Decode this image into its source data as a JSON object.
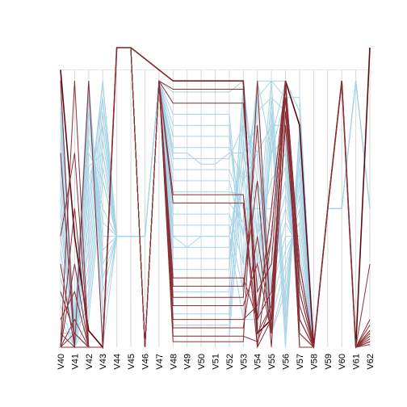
{
  "chart_data": {
    "type": "parallel-coordinates",
    "title": "",
    "xlabel": "",
    "ylabel": "",
    "axes": [
      "V40",
      "V41",
      "V42",
      "V43",
      "V44",
      "V45",
      "V46",
      "V47",
      "V48",
      "V49",
      "V50",
      "V51",
      "V52",
      "V53",
      "V54",
      "V55",
      "V56",
      "V57",
      "V58",
      "V59",
      "V60",
      "V61",
      "V62"
    ],
    "ylim": [
      0,
      1.08
    ],
    "grid": true,
    "legend": "none",
    "colors": {
      "class_a": "#a6d3e7",
      "class_b": "#8b3036",
      "highlight": "#5e0a14",
      "axis": "#d9d9d9"
    },
    "series": [
      {
        "group": "b",
        "values": [
          1.0,
          0.4,
          0.06,
          0.0,
          1.08,
          1.08,
          1.04,
          1.0,
          0.96,
          0.96,
          0.96,
          0.96,
          0.96,
          0.96,
          0.05,
          0.1,
          0.96,
          0.8,
          0.0,
          0.5,
          0.96,
          0.0,
          1.08
        ]
      },
      {
        "group": "b",
        "values": [
          0.0,
          0.96,
          0.0,
          0.0,
          1.08,
          1.08,
          1.04,
          1.0,
          0.96,
          0.96,
          0.96,
          0.96,
          0.96,
          0.96,
          0.0,
          0.4,
          0.96,
          0.3,
          0.0,
          0.5,
          0.96,
          0.0,
          0.3
        ]
      },
      {
        "group": "b",
        "values": [
          0.96,
          0.0,
          0.96,
          0.0,
          1.08,
          1.08,
          0.0,
          0.96,
          0.93,
          0.93,
          0.93,
          0.93,
          0.93,
          0.93,
          0.1,
          0.5,
          0.96,
          0.2,
          0.0,
          0.5,
          0.96,
          0.0,
          0.1
        ]
      },
      {
        "group": "b",
        "values": [
          0.4,
          0.7,
          0.0,
          0.0,
          1.08,
          1.08,
          0.0,
          0.96,
          0.88,
          0.88,
          0.88,
          0.88,
          0.88,
          0.88,
          0.2,
          0.3,
          0.96,
          0.1,
          0.0,
          0.5,
          0.96,
          0.0,
          0.05
        ]
      },
      {
        "group": "b",
        "values": [
          0.1,
          0.2,
          0.0,
          0.0,
          1.08,
          1.08,
          0.0,
          0.96,
          0.55,
          0.55,
          0.55,
          0.55,
          0.55,
          0.55,
          0.05,
          0.15,
          0.96,
          0.05,
          0.0,
          0.5,
          0.96,
          0.0,
          0.02
        ]
      },
      {
        "group": "b",
        "values": [
          0.0,
          0.5,
          0.0,
          0.0,
          1.08,
          1.08,
          0.0,
          0.96,
          0.52,
          0.52,
          0.52,
          0.52,
          0.52,
          0.52,
          0.0,
          0.1,
          0.96,
          0.0,
          0.0,
          0.5,
          0.96,
          0.0,
          0.08
        ]
      },
      {
        "group": "b",
        "values": [
          0.05,
          0.0,
          0.0,
          0.0,
          1.08,
          1.08,
          0.0,
          0.96,
          0.25,
          0.25,
          0.25,
          0.25,
          0.25,
          0.25,
          0.1,
          0.2,
          0.9,
          0.1,
          0.0,
          0.5,
          0.96,
          0.0,
          0.03
        ]
      },
      {
        "group": "b",
        "values": [
          0.2,
          0.05,
          0.0,
          0.0,
          1.08,
          1.08,
          0.0,
          0.96,
          0.22,
          0.22,
          0.22,
          0.22,
          0.22,
          0.22,
          0.6,
          0.0,
          0.85,
          0.2,
          0.0,
          0.5,
          0.96,
          0.0,
          0.06
        ]
      },
      {
        "group": "b",
        "values": [
          0.0,
          0.1,
          0.0,
          0.0,
          1.08,
          1.08,
          0.0,
          0.96,
          0.18,
          0.18,
          0.18,
          0.18,
          0.18,
          0.18,
          0.8,
          0.05,
          0.8,
          0.15,
          0.0,
          0.5,
          0.96,
          0.0,
          0.01
        ]
      },
      {
        "group": "b",
        "values": [
          0.3,
          0.0,
          0.0,
          0.0,
          1.08,
          1.08,
          0.0,
          0.96,
          0.15,
          0.15,
          0.15,
          0.15,
          0.15,
          0.15,
          0.3,
          0.05,
          0.96,
          0.3,
          0.0,
          0.5,
          0.96,
          0.0,
          0.04
        ]
      },
      {
        "group": "b",
        "values": [
          0.0,
          0.3,
          0.0,
          0.0,
          1.08,
          1.08,
          0.0,
          0.96,
          0.1,
          0.1,
          0.1,
          0.1,
          0.1,
          0.1,
          0.15,
          0.4,
          0.96,
          0.25,
          0.0,
          0.5,
          0.96,
          0.0,
          0.02
        ]
      },
      {
        "group": "b",
        "values": [
          0.0,
          0.05,
          0.0,
          0.0,
          1.08,
          1.08,
          0.0,
          0.96,
          0.07,
          0.07,
          0.07,
          0.07,
          0.07,
          0.07,
          0.4,
          0.05,
          0.96,
          0.1,
          0.0,
          0.5,
          0.96,
          0.0,
          0.05
        ]
      },
      {
        "group": "b",
        "values": [
          0.7,
          0.0,
          0.0,
          0.0,
          1.08,
          1.08,
          0.0,
          0.96,
          0.04,
          0.04,
          0.04,
          0.04,
          0.04,
          0.04,
          0.02,
          0.15,
          0.96,
          0.05,
          0.0,
          0.5,
          0.96,
          0.0,
          0.02
        ]
      },
      {
        "group": "b",
        "values": [
          0.0,
          0.0,
          0.0,
          0.0,
          1.08,
          1.08,
          0.0,
          0.96,
          0.02,
          0.02,
          0.02,
          0.02,
          0.02,
          0.02,
          0.96,
          0.05,
          0.96,
          0.0,
          0.0,
          0.5,
          0.96,
          0.0,
          0.06
        ]
      },
      {
        "group": "a",
        "values": [
          0.96,
          0.05,
          0.96,
          0.0,
          0.4,
          0.4,
          0.4,
          0.96,
          0.84,
          0.84,
          0.84,
          0.84,
          0.84,
          0.3,
          0.9,
          0.96,
          0.96,
          0.2,
          0.0,
          0.5,
          0.5,
          0.96,
          0.5
        ]
      },
      {
        "group": "a",
        "values": [
          0.9,
          0.0,
          0.96,
          0.1,
          0.4,
          0.4,
          0.4,
          0.96,
          0.8,
          0.8,
          0.8,
          0.8,
          0.8,
          0.2,
          0.96,
          0.96,
          0.9,
          0.15,
          0.0,
          0.5,
          0.5,
          0.96,
          0.5
        ]
      },
      {
        "group": "a",
        "values": [
          0.8,
          0.1,
          0.96,
          0.2,
          0.4,
          0.4,
          0.4,
          0.96,
          0.76,
          0.76,
          0.76,
          0.76,
          0.76,
          0.4,
          0.85,
          0.9,
          0.85,
          0.1,
          0.0,
          0.5,
          0.5,
          0.96,
          0.5
        ]
      },
      {
        "group": "a",
        "values": [
          0.7,
          0.0,
          0.96,
          0.25,
          0.4,
          0.4,
          0.4,
          0.96,
          0.72,
          0.72,
          0.72,
          0.72,
          0.72,
          0.6,
          0.7,
          0.8,
          0.8,
          0.05,
          0.0,
          0.5,
          0.5,
          0.96,
          0.5
        ]
      },
      {
        "group": "a",
        "values": [
          0.6,
          0.05,
          0.96,
          0.3,
          0.4,
          0.4,
          0.4,
          0.96,
          0.68,
          0.68,
          0.68,
          0.68,
          0.68,
          0.8,
          0.3,
          0.7,
          0.75,
          0.05,
          0.0,
          0.5,
          0.5,
          0.96,
          0.5
        ]
      },
      {
        "group": "a",
        "values": [
          0.5,
          0.0,
          0.9,
          0.35,
          0.4,
          0.4,
          0.4,
          0.96,
          0.7,
          0.7,
          0.66,
          0.66,
          0.7,
          0.7,
          0.4,
          0.6,
          0.7,
          0.1,
          0.0,
          0.5,
          0.5,
          0.96,
          0.5
        ]
      },
      {
        "group": "a",
        "values": [
          0.4,
          0.05,
          0.85,
          0.4,
          0.4,
          0.4,
          0.4,
          0.96,
          0.64,
          0.64,
          0.64,
          0.64,
          0.64,
          0.5,
          0.5,
          0.5,
          0.65,
          0.15,
          0.0,
          0.5,
          0.5,
          0.96,
          0.5
        ]
      },
      {
        "group": "a",
        "values": [
          0.3,
          0.0,
          0.8,
          0.45,
          0.4,
          0.4,
          0.4,
          0.96,
          0.6,
          0.6,
          0.6,
          0.6,
          0.6,
          0.4,
          0.6,
          0.4,
          0.6,
          0.2,
          0.0,
          0.5,
          0.5,
          0.96,
          0.5
        ]
      },
      {
        "group": "a",
        "values": [
          0.2,
          0.05,
          0.75,
          0.5,
          0.4,
          0.4,
          0.4,
          0.96,
          0.48,
          0.48,
          0.48,
          0.48,
          0.48,
          0.3,
          0.3,
          0.35,
          0.55,
          0.25,
          0.0,
          0.5,
          0.5,
          0.96,
          0.5
        ]
      },
      {
        "group": "a",
        "values": [
          0.1,
          0.0,
          0.7,
          0.6,
          0.4,
          0.4,
          0.4,
          0.96,
          0.44,
          0.44,
          0.44,
          0.44,
          0.44,
          0.2,
          0.2,
          0.3,
          0.5,
          0.3,
          0.0,
          0.5,
          0.5,
          0.96,
          0.5
        ]
      },
      {
        "group": "a",
        "values": [
          0.05,
          0.05,
          0.65,
          0.7,
          0.4,
          0.4,
          0.4,
          0.96,
          0.4,
          0.4,
          0.4,
          0.4,
          0.4,
          0.1,
          0.1,
          0.25,
          0.45,
          0.35,
          0.0,
          0.5,
          0.5,
          0.96,
          0.5
        ]
      },
      {
        "group": "a",
        "values": [
          0.96,
          0.0,
          0.6,
          0.8,
          0.4,
          0.4,
          0.4,
          0.96,
          0.36,
          0.36,
          0.36,
          0.36,
          0.36,
          0.6,
          0.9,
          0.2,
          0.4,
          0.4,
          0.0,
          0.5,
          0.5,
          0.96,
          0.5
        ]
      },
      {
        "group": "a",
        "values": [
          0.85,
          0.05,
          0.55,
          0.9,
          0.4,
          0.4,
          0.4,
          0.96,
          0.4,
          0.36,
          0.4,
          0.4,
          0.4,
          0.7,
          0.8,
          0.15,
          0.35,
          0.45,
          0.0,
          0.5,
          0.5,
          0.96,
          0.5
        ]
      },
      {
        "group": "a",
        "values": [
          0.75,
          0.0,
          0.5,
          0.96,
          0.4,
          0.4,
          0.4,
          0.96,
          0.32,
          0.32,
          0.32,
          0.32,
          0.32,
          0.8,
          0.7,
          0.1,
          0.3,
          0.5,
          0.0,
          0.5,
          0.5,
          0.96,
          0.5
        ]
      },
      {
        "group": "a",
        "values": [
          0.65,
          0.05,
          0.45,
          0.96,
          0.4,
          0.4,
          0.4,
          0.96,
          0.28,
          0.28,
          0.28,
          0.28,
          0.28,
          0.9,
          0.6,
          0.05,
          0.25,
          0.55,
          0.0,
          0.5,
          0.5,
          0.96,
          0.5
        ]
      },
      {
        "group": "a",
        "values": [
          0.55,
          0.0,
          0.4,
          0.9,
          0.4,
          0.4,
          0.4,
          0.96,
          0.2,
          0.2,
          0.2,
          0.2,
          0.2,
          0.96,
          0.5,
          0.05,
          0.2,
          0.6,
          0.0,
          0.5,
          0.5,
          0.96,
          0.5
        ]
      },
      {
        "group": "a",
        "values": [
          0.45,
          0.05,
          0.35,
          0.85,
          0.4,
          0.4,
          0.4,
          0.96,
          0.92,
          0.92,
          0.92,
          0.92,
          0.92,
          0.96,
          0.4,
          0.96,
          0.15,
          0.65,
          0.0,
          0.5,
          0.5,
          0.96,
          0.5
        ]
      },
      {
        "group": "a",
        "values": [
          0.35,
          0.0,
          0.3,
          0.8,
          0.4,
          0.4,
          0.4,
          0.96,
          0.12,
          0.12,
          0.12,
          0.12,
          0.12,
          0.85,
          0.3,
          0.9,
          0.1,
          0.7,
          0.0,
          0.5,
          0.5,
          0.96,
          0.5
        ]
      },
      {
        "group": "a",
        "values": [
          0.25,
          0.05,
          0.25,
          0.75,
          0.4,
          0.4,
          0.4,
          0.96,
          0.08,
          0.08,
          0.08,
          0.08,
          0.08,
          0.75,
          0.2,
          0.85,
          0.05,
          0.75,
          0.0,
          0.5,
          0.5,
          0.96,
          0.5
        ]
      },
      {
        "group": "a",
        "values": [
          0.15,
          0.0,
          0.2,
          0.7,
          0.4,
          0.4,
          0.4,
          0.96,
          0.04,
          0.04,
          0.04,
          0.04,
          0.04,
          0.65,
          0.1,
          0.8,
          0.0,
          0.8,
          0.0,
          0.5,
          0.5,
          0.96,
          0.5
        ]
      },
      {
        "group": "a",
        "values": [
          0.05,
          0.05,
          0.15,
          0.65,
          0.4,
          0.4,
          0.4,
          0.96,
          0.56,
          0.56,
          0.56,
          0.56,
          0.56,
          0.55,
          0.05,
          0.75,
          0.96,
          0.85,
          0.0,
          0.5,
          0.5,
          0.96,
          0.5
        ]
      },
      {
        "group": "a",
        "values": [
          0.96,
          0.0,
          0.1,
          0.6,
          0.4,
          0.4,
          0.4,
          0.96,
          0.52,
          0.52,
          0.52,
          0.52,
          0.52,
          0.45,
          0.96,
          0.7,
          0.9,
          0.9,
          0.0,
          0.5,
          0.5,
          0.96,
          0.5
        ]
      }
    ]
  }
}
